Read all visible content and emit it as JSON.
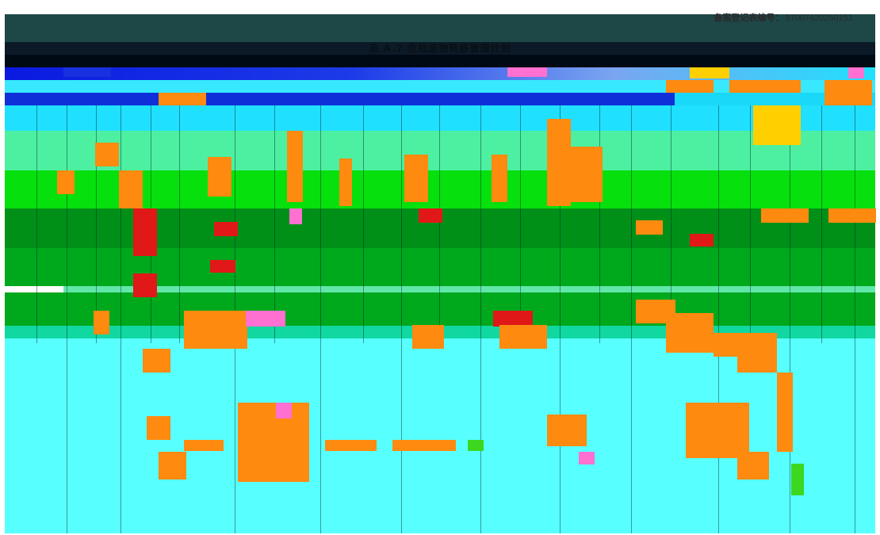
{
  "document": {
    "registration_label": "备案登记表编号：",
    "registration_number": "9700742025015",
    "registration_suffix": "1",
    "title": "表 A.7 危险废物转移管理计划"
  },
  "colors": {
    "header_band": "#1e4848",
    "title_band": "#0c1a28",
    "cyan": "#20e0ff",
    "mint": "#4cf0a0",
    "green": "#06e00c",
    "dark_green": "#009018",
    "light_cyan": "#58ffff"
  }
}
